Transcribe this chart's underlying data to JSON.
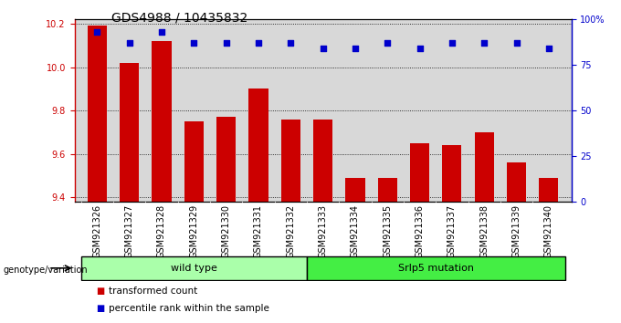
{
  "title": "GDS4988 / 10435832",
  "samples": [
    "GSM921326",
    "GSM921327",
    "GSM921328",
    "GSM921329",
    "GSM921330",
    "GSM921331",
    "GSM921332",
    "GSM921333",
    "GSM921334",
    "GSM921335",
    "GSM921336",
    "GSM921337",
    "GSM921338",
    "GSM921339",
    "GSM921340"
  ],
  "transformed_count": [
    10.19,
    10.02,
    10.12,
    9.75,
    9.77,
    9.9,
    9.76,
    9.76,
    9.49,
    9.49,
    9.65,
    9.64,
    9.7,
    9.56,
    9.49
  ],
  "percentile_rank": [
    93,
    87,
    93,
    87,
    87,
    87,
    87,
    84,
    84,
    87,
    84,
    87,
    87,
    87,
    84
  ],
  "ylim_left": [
    9.38,
    10.22
  ],
  "ylim_right": [
    0,
    100
  ],
  "yticks_left": [
    9.4,
    9.6,
    9.8,
    10.0,
    10.2
  ],
  "yticks_right": [
    0,
    25,
    50,
    75,
    100
  ],
  "bar_color": "#cc0000",
  "dot_color": "#0000cc",
  "wild_type_count": 7,
  "group_labels": [
    "wild type",
    "Srlp5 mutation"
  ],
  "wt_color": "#aaffaa",
  "mut_color": "#44ee44",
  "legend_items": [
    "transformed count",
    "percentile rank within the sample"
  ],
  "legend_colors": [
    "#cc0000",
    "#0000cc"
  ],
  "plot_bg": "#d8d8d8",
  "title_fontsize": 10,
  "tick_fontsize": 7,
  "genotype_label": "genotype/variation"
}
